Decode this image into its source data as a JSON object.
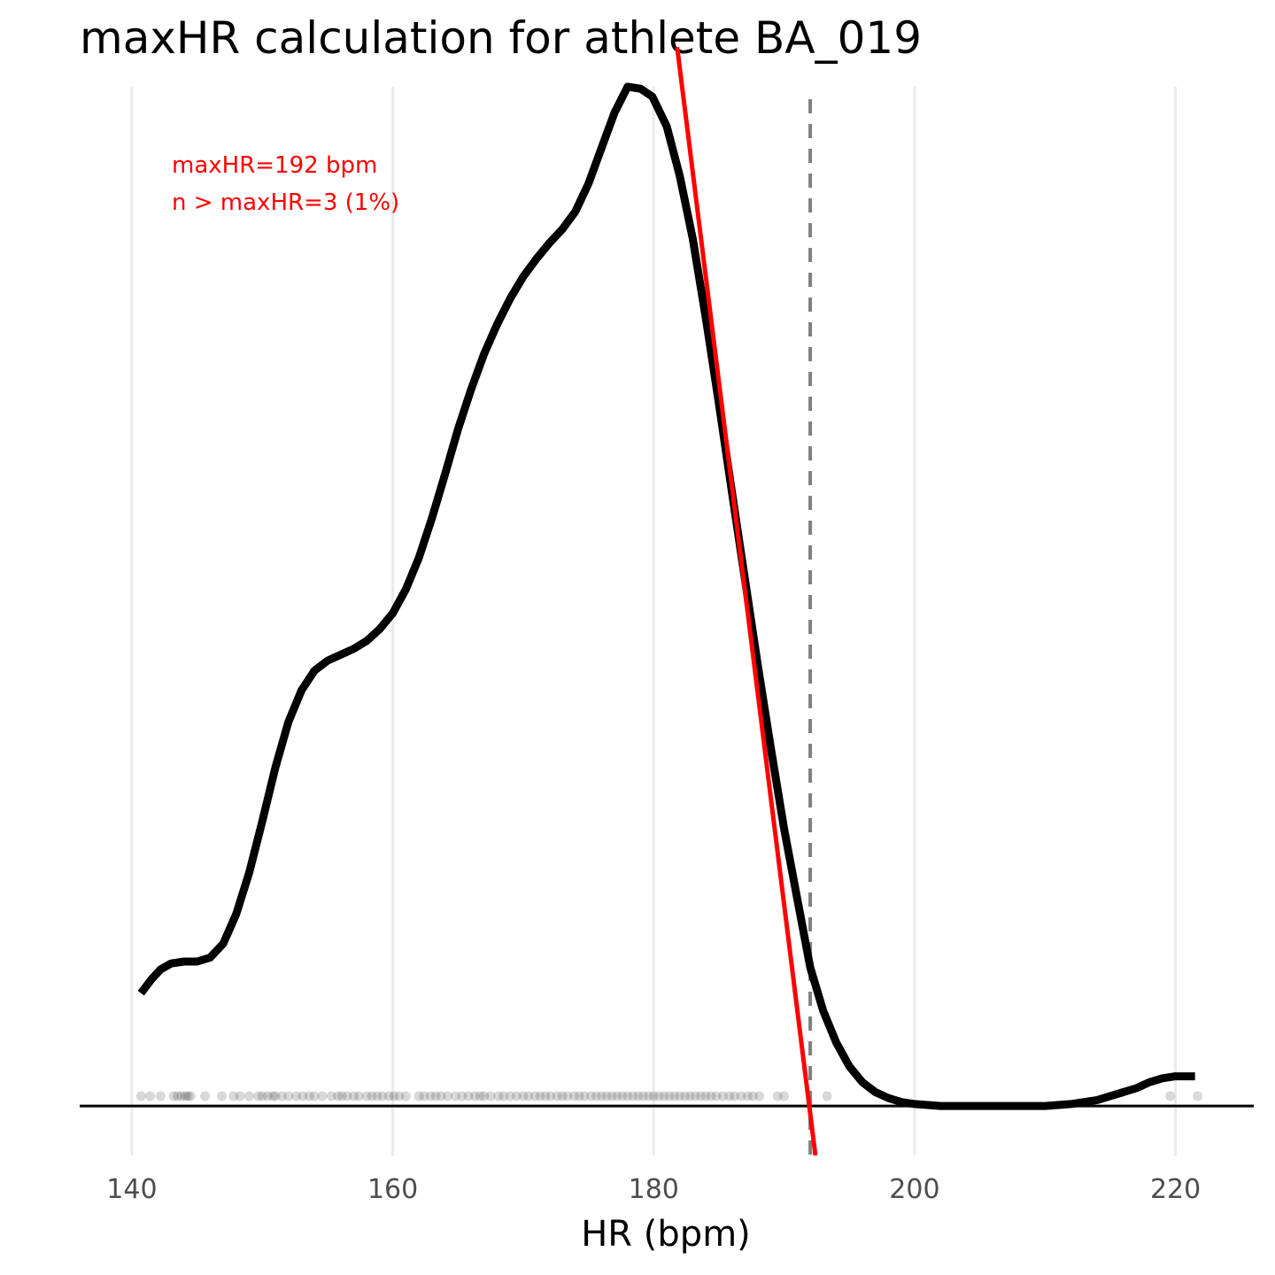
{
  "chart_data": {
    "type": "density",
    "title": "maxHR calculation for athlete BA_019",
    "xlabel": "HR (bpm)",
    "ylabel": "",
    "xlim": [
      136,
      226
    ],
    "ylim": [
      -0.0025,
      0.0515
    ],
    "x_ticks": [
      140,
      160,
      180,
      200,
      220
    ],
    "grid": "vertical-major",
    "legend": "none",
    "colors": {
      "density": "#000000",
      "fit": "#ff0000",
      "reference": "#808080",
      "points": "#000000",
      "annotation": "#ff0000",
      "gridline": "#ebebeb"
    },
    "density_curve": {
      "x": [
        140.7,
        141.5,
        142.2,
        143.0,
        144.0,
        145.0,
        146.0,
        147.0,
        148.0,
        149.0,
        150.0,
        151.0,
        152.0,
        153.0,
        154.0,
        155.0,
        156.0,
        157.0,
        158.0,
        159.0,
        160.0,
        161.0,
        162.0,
        163.0,
        164.0,
        165.0,
        166.0,
        167.0,
        168.0,
        169.0,
        170.0,
        171.0,
        172.0,
        173.0,
        174.0,
        175.0,
        176.0,
        177.0,
        178.0,
        179.0,
        179.9,
        181.0,
        182.0,
        183.0,
        184.0,
        185.0,
        186.0,
        187.0,
        188.0,
        189.0,
        190.0,
        191.0,
        192.0,
        193.0,
        194.0,
        195.0,
        196.0,
        197.0,
        198.0,
        199.0,
        200.0,
        202.0,
        204.0,
        206.0,
        208.0,
        210.0,
        212.0,
        214.0,
        215.0,
        216.0,
        217.0,
        218.0,
        219.0,
        220.0,
        221.0,
        221.5
      ],
      "y": [
        0.0057,
        0.0064,
        0.0069,
        0.0072,
        0.0073,
        0.0073,
        0.0075,
        0.0082,
        0.0097,
        0.0118,
        0.0144,
        0.0171,
        0.0194,
        0.021,
        0.022,
        0.0225,
        0.0228,
        0.0231,
        0.0235,
        0.0241,
        0.0249,
        0.0261,
        0.0277,
        0.0297,
        0.0319,
        0.0342,
        0.0362,
        0.038,
        0.0395,
        0.0408,
        0.0419,
        0.0428,
        0.0436,
        0.0443,
        0.0452,
        0.0466,
        0.0484,
        0.0502,
        0.0515,
        0.0514,
        0.051,
        0.0495,
        0.047,
        0.0438,
        0.0398,
        0.0355,
        0.031,
        0.0266,
        0.0222,
        0.018,
        0.014,
        0.0105,
        0.007,
        0.0048,
        0.0032,
        0.002,
        0.0012,
        0.0007,
        0.0004,
        0.0002,
        0.0001,
        0.0,
        0.0,
        0.0,
        0.0,
        0.0,
        0.0001,
        0.0003,
        0.0005,
        0.0007,
        0.0009,
        0.0012,
        0.0014,
        0.0015,
        0.0015,
        0.0015
      ]
    },
    "fit_line": {
      "x": [
        181.8,
        192.4
      ],
      "y": [
        0.0535,
        -0.0025
      ]
    },
    "reference_line": {
      "x": 192,
      "style": "dashed"
    },
    "rug_points": {
      "y": 0.0005,
      "x": [
        140.7,
        141.4,
        142.2,
        143.2,
        143.5,
        143.8,
        144.1,
        144.3,
        144.5,
        145.6,
        146.9,
        147.8,
        148.3,
        149.0,
        149.7,
        150.0,
        150.4,
        150.8,
        151.0,
        151.5,
        152.0,
        152.6,
        153.1,
        153.6,
        154.0,
        154.6,
        155.3,
        155.8,
        156.1,
        156.5,
        157.0,
        157.4,
        158.0,
        158.4,
        158.8,
        159.2,
        159.7,
        160.1,
        160.5,
        161.0,
        162.0,
        162.4,
        162.9,
        163.3,
        163.7,
        164.2,
        164.8,
        165.3,
        165.8,
        166.3,
        166.7,
        167.0,
        167.5,
        168.1,
        168.5,
        169.0,
        169.5,
        170.0,
        170.4,
        170.9,
        171.3,
        171.7,
        172.1,
        172.6,
        173.0,
        173.4,
        173.9,
        174.3,
        174.7,
        175.2,
        175.6,
        176.0,
        176.4,
        176.8,
        177.2,
        177.6,
        178.0,
        178.4,
        178.8,
        179.2,
        179.6,
        180.0,
        180.4,
        180.8,
        181.2,
        181.6,
        182.0,
        182.4,
        182.8,
        183.2,
        183.6,
        184.0,
        184.4,
        184.8,
        185.3,
        185.8,
        186.2,
        186.7,
        187.2,
        187.6,
        188.1,
        189.5,
        190.0,
        193.3,
        219.6,
        221.7
      ]
    },
    "annotations": [
      "maxHR=192 bpm",
      "n > maxHR=3 (1%)"
    ]
  }
}
